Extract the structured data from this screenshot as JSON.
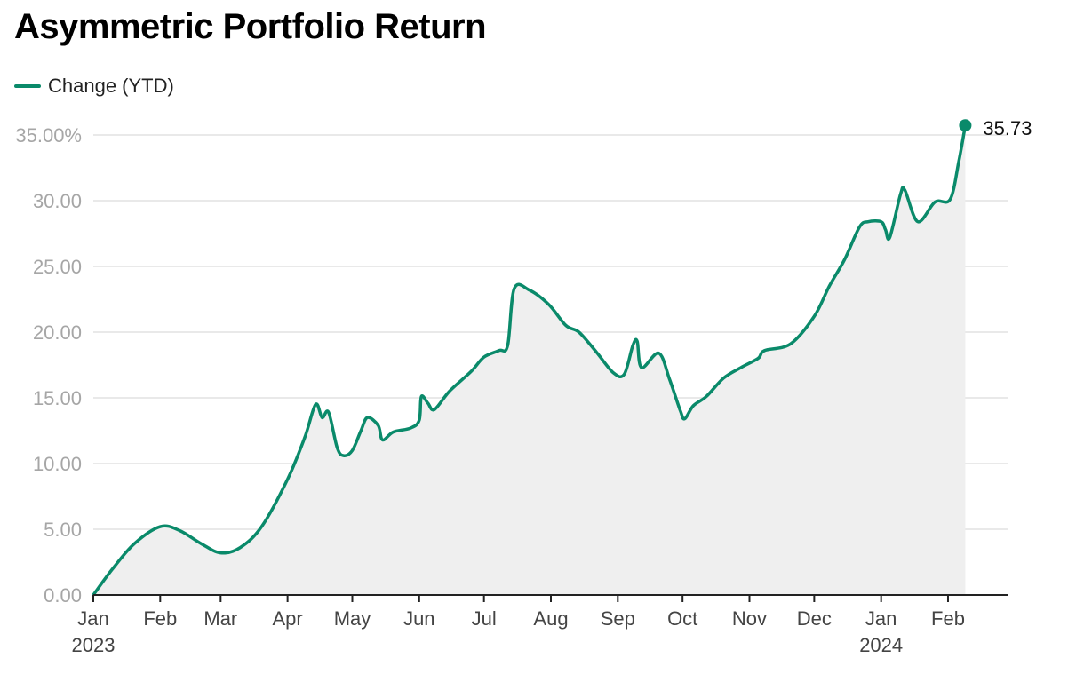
{
  "title": "Asymmetric Portfolio Return",
  "legend": [
    {
      "label": "Change (YTD)"
    }
  ],
  "colors": {
    "line": "#0a8a6a",
    "area": "#efefef",
    "grid": "#e2e2e2",
    "axis": "#222222",
    "tick": "#a6a6a6"
  },
  "chart_data": {
    "type": "area",
    "title": "Asymmetric Portfolio Return",
    "xlabel": "",
    "ylabel": "",
    "ylim": [
      0,
      35
    ],
    "yticks": [
      0,
      5,
      10,
      15,
      20,
      25,
      30,
      35
    ],
    "ytick_labels": [
      "0.00",
      "5.00",
      "10.00",
      "15.00",
      "20.00",
      "25.00",
      "30.00",
      "35.00%"
    ],
    "xlim": [
      "2023-01-01",
      "2024-02-29"
    ],
    "xticks": [
      {
        "date": "2023-01-01",
        "label": "Jan",
        "year": "2023"
      },
      {
        "date": "2023-02-01",
        "label": "Feb"
      },
      {
        "date": "2023-03-01",
        "label": "Mar"
      },
      {
        "date": "2023-04-01",
        "label": "Apr"
      },
      {
        "date": "2023-05-01",
        "label": "May"
      },
      {
        "date": "2023-06-01",
        "label": "Jun"
      },
      {
        "date": "2023-07-01",
        "label": "Jul"
      },
      {
        "date": "2023-08-01",
        "label": "Aug"
      },
      {
        "date": "2023-09-01",
        "label": "Sep"
      },
      {
        "date": "2023-10-01",
        "label": "Oct"
      },
      {
        "date": "2023-11-01",
        "label": "Nov"
      },
      {
        "date": "2023-12-01",
        "label": "Dec"
      },
      {
        "date": "2024-01-01",
        "label": "Jan",
        "year": "2024"
      },
      {
        "date": "2024-02-01",
        "label": "Feb"
      }
    ],
    "grid": true,
    "legend_position": "top-left",
    "series": [
      {
        "name": "Change (YTD)",
        "points": [
          [
            "2023-01-01",
            0.0
          ],
          [
            "2023-01-10",
            2.0
          ],
          [
            "2023-01-20",
            3.9
          ],
          [
            "2023-02-01",
            5.2
          ],
          [
            "2023-02-10",
            4.9
          ],
          [
            "2023-02-20",
            3.9
          ],
          [
            "2023-03-01",
            3.2
          ],
          [
            "2023-03-10",
            3.6
          ],
          [
            "2023-03-20",
            5.2
          ],
          [
            "2023-04-01",
            8.8
          ],
          [
            "2023-04-09",
            12.0
          ],
          [
            "2023-04-14",
            14.5
          ],
          [
            "2023-04-17",
            13.5
          ],
          [
            "2023-04-20",
            13.9
          ],
          [
            "2023-04-24",
            11.2
          ],
          [
            "2023-04-27",
            10.6
          ],
          [
            "2023-05-01",
            11.0
          ],
          [
            "2023-05-05",
            12.5
          ],
          [
            "2023-05-08",
            13.5
          ],
          [
            "2023-05-13",
            12.9
          ],
          [
            "2023-05-15",
            11.8
          ],
          [
            "2023-05-20",
            12.4
          ],
          [
            "2023-05-28",
            12.7
          ],
          [
            "2023-06-01",
            13.3
          ],
          [
            "2023-06-02",
            15.1
          ],
          [
            "2023-06-05",
            14.6
          ],
          [
            "2023-06-08",
            14.1
          ],
          [
            "2023-06-15",
            15.5
          ],
          [
            "2023-06-25",
            17.0
          ],
          [
            "2023-07-01",
            18.1
          ],
          [
            "2023-07-08",
            18.6
          ],
          [
            "2023-07-12",
            19.0
          ],
          [
            "2023-07-15",
            23.3
          ],
          [
            "2023-07-22",
            23.2
          ],
          [
            "2023-07-31",
            22.1
          ],
          [
            "2023-08-08",
            20.5
          ],
          [
            "2023-08-14",
            20.0
          ],
          [
            "2023-08-22",
            18.5
          ],
          [
            "2023-08-30",
            16.9
          ],
          [
            "2023-09-04",
            16.8
          ],
          [
            "2023-09-08",
            19.0
          ],
          [
            "2023-09-10",
            19.3
          ],
          [
            "2023-09-12",
            17.3
          ],
          [
            "2023-09-20",
            18.4
          ],
          [
            "2023-09-25",
            16.4
          ],
          [
            "2023-09-30",
            14.0
          ],
          [
            "2023-10-02",
            13.4
          ],
          [
            "2023-10-06",
            14.4
          ],
          [
            "2023-10-12",
            15.1
          ],
          [
            "2023-10-20",
            16.5
          ],
          [
            "2023-10-28",
            17.3
          ],
          [
            "2023-11-05",
            18.0
          ],
          [
            "2023-11-08",
            18.6
          ],
          [
            "2023-11-20",
            19.1
          ],
          [
            "2023-12-01",
            21.2
          ],
          [
            "2023-12-08",
            23.5
          ],
          [
            "2023-12-15",
            25.5
          ],
          [
            "2023-12-22",
            28.0
          ],
          [
            "2023-12-26",
            28.4
          ],
          [
            "2024-01-01",
            28.4
          ],
          [
            "2024-01-03",
            27.8
          ],
          [
            "2024-01-05",
            27.2
          ],
          [
            "2024-01-10",
            30.5
          ],
          [
            "2024-01-12",
            30.8
          ],
          [
            "2024-01-18",
            28.4
          ],
          [
            "2024-01-26",
            29.9
          ],
          [
            "2024-02-02",
            30.1
          ],
          [
            "2024-02-06",
            33.0
          ],
          [
            "2024-02-09",
            35.73
          ]
        ]
      }
    ],
    "annotations": [
      {
        "date": "2024-02-09",
        "value": 35.73,
        "text": "35.73"
      }
    ]
  }
}
